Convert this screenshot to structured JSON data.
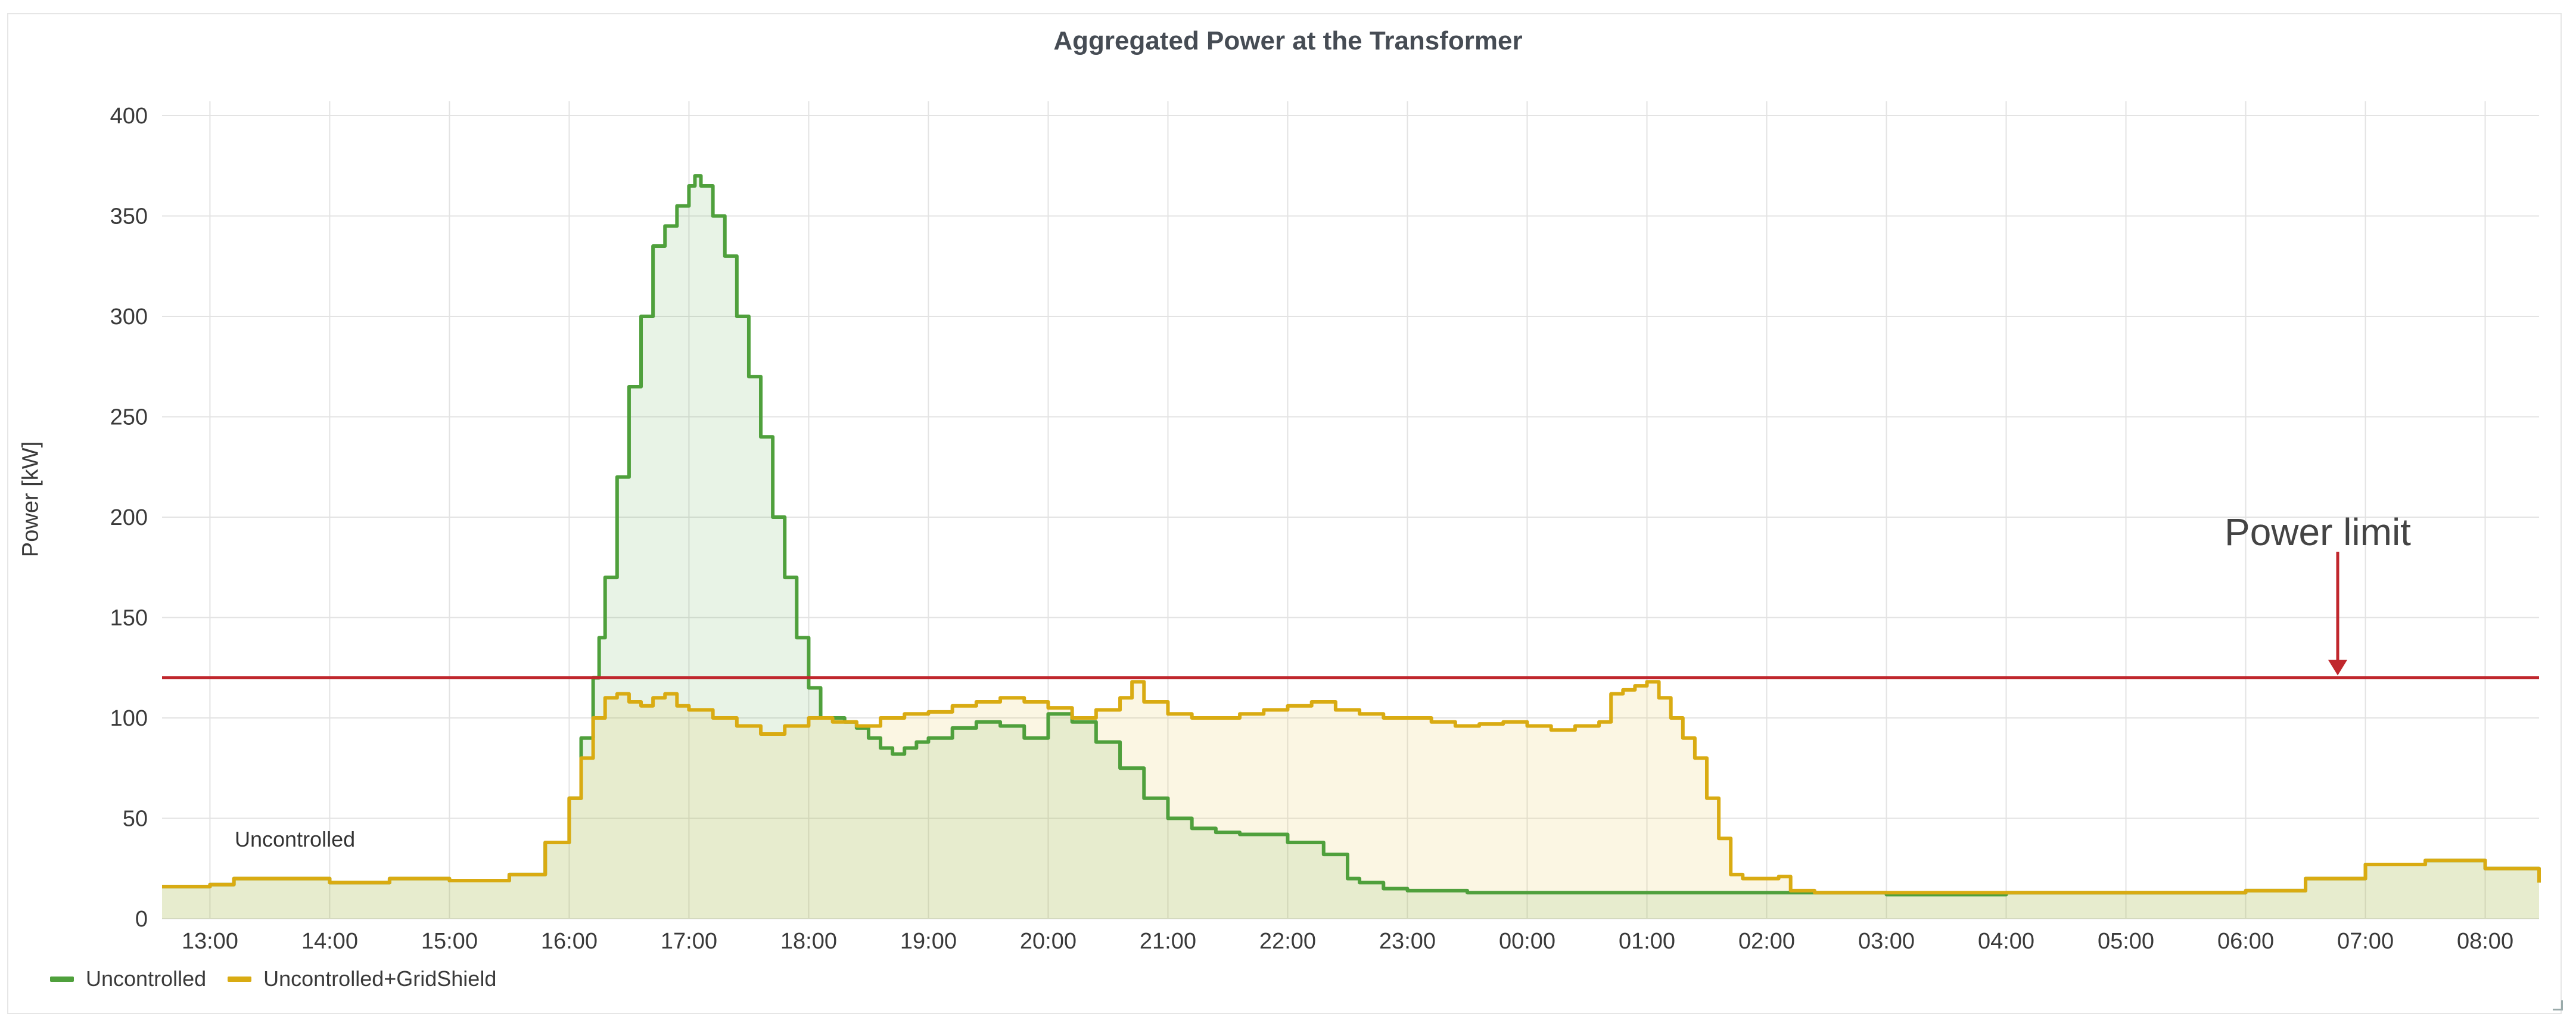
{
  "chart_data": {
    "type": "area",
    "title": "Aggregated Power at the Transformer",
    "ylabel": "Power [kW]",
    "xlabel": "",
    "x_ticks": [
      "13:00",
      "14:00",
      "15:00",
      "16:00",
      "17:00",
      "18:00",
      "19:00",
      "20:00",
      "21:00",
      "22:00",
      "23:00",
      "00:00",
      "01:00",
      "02:00",
      "03:00",
      "04:00",
      "05:00",
      "06:00",
      "07:00",
      "08:00"
    ],
    "y_ticks": [
      0,
      50,
      100,
      150,
      200,
      250,
      300,
      350,
      400
    ],
    "xlim": [
      12.6,
      32.45
    ],
    "ylim": [
      0,
      400
    ],
    "grid": true,
    "legend_position": "bottom-left",
    "power_limit": {
      "value": 120,
      "label": "Power limit",
      "color": "#c0272d"
    },
    "annotations": [
      {
        "text": "Uncontrolled"
      }
    ],
    "series": [
      {
        "name": "Uncontrolled",
        "color": "#4fa03c",
        "fill": "rgba(79,160,60,0.13)",
        "x": [
          12.6,
          13.0,
          13.2,
          14.0,
          14.5,
          15.0,
          15.5,
          15.8,
          16.0,
          16.1,
          16.2,
          16.25,
          16.3,
          16.4,
          16.5,
          16.6,
          16.7,
          16.8,
          16.9,
          17.0,
          17.05,
          17.1,
          17.2,
          17.3,
          17.4,
          17.5,
          17.6,
          17.7,
          17.8,
          17.9,
          18.0,
          18.1,
          18.2,
          18.3,
          18.4,
          18.5,
          18.6,
          18.7,
          18.8,
          18.9,
          19.0,
          19.2,
          19.4,
          19.6,
          19.8,
          20.0,
          20.2,
          20.4,
          20.6,
          20.8,
          21.0,
          21.2,
          21.4,
          21.6,
          22.0,
          22.3,
          22.5,
          22.6,
          22.8,
          23.0,
          23.5,
          24.0,
          24.5,
          25.0,
          25.5,
          26.0,
          26.5,
          27.0,
          28.0,
          29.0,
          30.0,
          30.5,
          31.0,
          31.5,
          32.0,
          32.45
        ],
        "y": [
          16,
          17,
          20,
          18,
          20,
          19,
          22,
          38,
          60,
          90,
          120,
          140,
          170,
          220,
          265,
          300,
          335,
          345,
          355,
          365,
          370,
          365,
          350,
          330,
          300,
          270,
          240,
          200,
          170,
          140,
          115,
          100,
          100,
          98,
          95,
          90,
          85,
          82,
          85,
          88,
          90,
          95,
          98,
          96,
          90,
          102,
          98,
          88,
          75,
          60,
          50,
          45,
          43,
          42,
          38,
          32,
          20,
          18,
          15,
          14,
          13,
          13,
          13,
          13,
          13,
          13,
          13,
          12,
          13,
          13,
          14,
          20,
          27,
          29,
          25,
          18
        ]
      },
      {
        "name": "Uncontrolled+GridShield",
        "color": "#d9ab12",
        "fill": "rgba(233,196,80,0.16)",
        "x": [
          12.6,
          13.0,
          13.2,
          14.0,
          14.5,
          15.0,
          15.5,
          15.8,
          16.0,
          16.1,
          16.2,
          16.3,
          16.4,
          16.5,
          16.6,
          16.7,
          16.8,
          16.9,
          17.0,
          17.2,
          17.4,
          17.6,
          17.8,
          18.0,
          18.2,
          18.4,
          18.6,
          18.8,
          19.0,
          19.2,
          19.4,
          19.6,
          19.8,
          20.0,
          20.2,
          20.4,
          20.6,
          20.7,
          20.8,
          21.0,
          21.2,
          21.4,
          21.6,
          21.8,
          22.0,
          22.2,
          22.4,
          22.6,
          22.8,
          23.0,
          23.2,
          23.4,
          23.6,
          23.8,
          24.0,
          24.2,
          24.4,
          24.6,
          24.7,
          24.8,
          24.9,
          25.0,
          25.1,
          25.2,
          25.3,
          25.4,
          25.5,
          25.6,
          25.7,
          25.8,
          25.9,
          26.0,
          26.1,
          26.2,
          26.4,
          26.5,
          26.6,
          27.0,
          28.0,
          29.0,
          30.0,
          30.5,
          31.0,
          31.5,
          32.0,
          32.45
        ],
        "y": [
          16,
          17,
          20,
          18,
          20,
          19,
          22,
          38,
          60,
          80,
          100,
          110,
          112,
          108,
          106,
          110,
          112,
          106,
          104,
          100,
          96,
          92,
          96,
          100,
          98,
          96,
          100,
          102,
          103,
          106,
          108,
          110,
          108,
          105,
          100,
          104,
          110,
          118,
          108,
          102,
          100,
          100,
          102,
          104,
          106,
          108,
          104,
          102,
          100,
          100,
          98,
          96,
          97,
          98,
          96,
          94,
          96,
          98,
          112,
          114,
          116,
          118,
          110,
          100,
          90,
          80,
          60,
          40,
          22,
          20,
          20,
          20,
          21,
          14,
          13,
          13,
          13,
          13,
          13,
          13,
          14,
          20,
          27,
          29,
          25,
          18
        ]
      }
    ]
  }
}
